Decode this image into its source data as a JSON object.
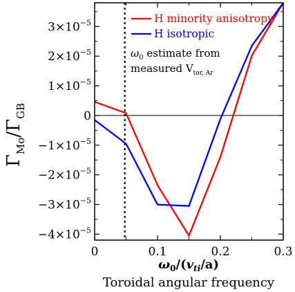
{
  "chart_data": {
    "type": "line",
    "xlabel": "ω₀/(vₜᵢ/a)",
    "xlabel_parts": {
      "omega": "ω",
      "omega_sub": "0",
      "slash": "/(",
      "v": "v",
      "v_sub": "ti",
      "a": "/a)"
    },
    "xlabel_secondary": "Toroidal angular frequency",
    "ylabel": "ΓMo/ΓGB",
    "ylabel_parts": {
      "gamma1": "Γ",
      "sub1": "Mo",
      "slash": "/",
      "gamma2": "Γ",
      "sub2": "GB"
    },
    "xlim": [
      0,
      0.3
    ],
    "ylim": [
      -4.2e-05,
      3.8e-05
    ],
    "x_ticks": [
      0,
      0.1,
      0.2,
      0.3
    ],
    "x_tick_labels": [
      "0",
      "0.1",
      "0.2",
      "0.3"
    ],
    "y_ticks": [
      -4e-05,
      -3e-05,
      -2e-05,
      -1e-05,
      0,
      1e-05,
      2e-05,
      3e-05
    ],
    "y_tick_labels": [
      {
        "sign": "−",
        "mant": "4",
        "mult": "×10",
        "exp": "−5"
      },
      {
        "sign": "−",
        "mant": "3",
        "mult": "×10",
        "exp": "−5"
      },
      {
        "sign": "−",
        "mant": "2",
        "mult": "×10",
        "exp": "−5"
      },
      {
        "sign": "−",
        "mant": "1",
        "mult": "×10",
        "exp": "−5"
      },
      {
        "sign": "",
        "mant": "0",
        "mult": "",
        "exp": ""
      },
      {
        "sign": "",
        "mant": "1",
        "mult": "×10",
        "exp": "−5"
      },
      {
        "sign": "",
        "mant": "2",
        "mult": "×10",
        "exp": "−5"
      },
      {
        "sign": "",
        "mant": "3",
        "mult": "×10",
        "exp": "−5"
      }
    ],
    "series": [
      {
        "name": "H minority anisotropy",
        "color": "#ff0000",
        "x": [
          0,
          0.05,
          0.1,
          0.15,
          0.2,
          0.25,
          0.3
        ],
        "y": [
          4.6e-06,
          8e-07,
          -2.35e-05,
          -4.05e-05,
          -1.4e-05,
          2.02e-05,
          3.8e-05
        ]
      },
      {
        "name": "H isotropic",
        "color": "#0000ff",
        "x": [
          0,
          0.05,
          0.1,
          0.15,
          0.2,
          0.25,
          0.3
        ],
        "y": [
          -1.5e-06,
          -9.5e-06,
          -3e-05,
          -3.05e-05,
          -1.2e-06,
          2.35e-05,
          3.8e-05
        ]
      }
    ],
    "zero_line": true,
    "vertical_marker": {
      "x": 0.048,
      "style": "dotted",
      "color": "#000000"
    },
    "annotation": {
      "line1_omega": "ω",
      "line1_sub": "0",
      "line1_rest": " estimate from",
      "line2_text": "measured V",
      "line2_sub": "tor, Ar"
    },
    "legend_position": "top-right",
    "grid": false
  }
}
